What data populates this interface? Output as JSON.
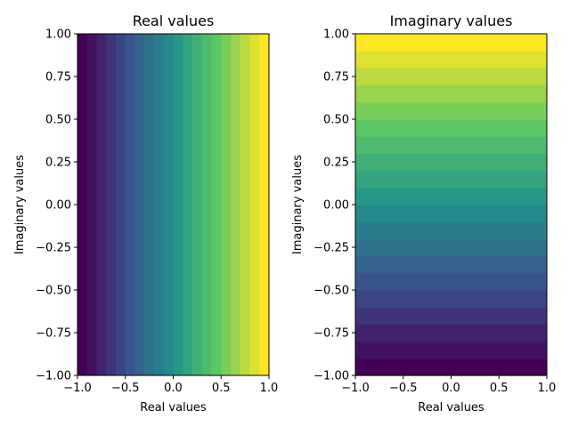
{
  "chart_data": [
    {
      "type": "heatmap",
      "title": "Real values",
      "xlabel": "Real values",
      "ylabel": "Imaginary values",
      "xlim": [
        -1.0,
        1.0
      ],
      "ylim": [
        -1.0,
        1.0
      ],
      "x_ticks": [
        "−1.0",
        "−0.5",
        "0.0",
        "0.5",
        "1.0"
      ],
      "x_tick_values": [
        -1.0,
        -0.5,
        0.0,
        0.5,
        1.0
      ],
      "y_ticks": [
        "−1.00",
        "−0.75",
        "−0.50",
        "−0.25",
        "0.00",
        "0.25",
        "0.50",
        "0.75",
        "1.00"
      ],
      "y_tick_values": [
        -1.0,
        -0.75,
        -0.5,
        -0.25,
        0.0,
        0.25,
        0.5,
        0.75,
        1.0
      ],
      "colormap": "viridis",
      "gradient_axis": "x",
      "cells": 20,
      "grid": false
    },
    {
      "type": "heatmap",
      "title": "Imaginary values",
      "xlabel": "Real values",
      "ylabel": "Imaginary values",
      "xlim": [
        -1.0,
        1.0
      ],
      "ylim": [
        -1.0,
        1.0
      ],
      "x_ticks": [
        "−1.0",
        "−0.5",
        "0.0",
        "0.5",
        "1.0"
      ],
      "x_tick_values": [
        -1.0,
        -0.5,
        0.0,
        0.5,
        1.0
      ],
      "y_ticks": [
        "−1.00",
        "−0.75",
        "−0.50",
        "−0.25",
        "0.00",
        "0.25",
        "0.50",
        "0.75",
        "1.00"
      ],
      "y_tick_values": [
        -1.0,
        -0.75,
        -0.5,
        -0.25,
        0.0,
        0.25,
        0.5,
        0.75,
        1.0
      ],
      "colormap": "viridis",
      "gradient_axis": "y",
      "cells": 20,
      "grid": false
    }
  ]
}
